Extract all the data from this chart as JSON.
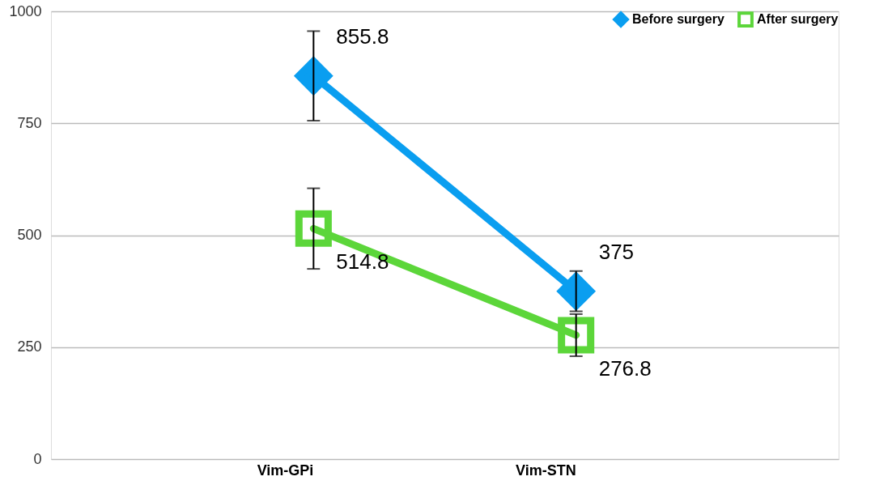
{
  "chart_data": {
    "type": "line",
    "categories": [
      "Vim-GPi",
      "Vim-STN"
    ],
    "series": [
      {
        "name": "Before surgery",
        "color": "#0a9ef0",
        "marker": "diamond",
        "values": [
          855.8,
          375
        ],
        "errors": [
          100,
          45
        ]
      },
      {
        "name": "After surgery",
        "color": "#5cd63a",
        "marker": "square",
        "values": [
          514.8,
          276.8
        ],
        "errors": [
          90,
          47
        ]
      }
    ],
    "ylim": [
      0,
      1000
    ],
    "yticks": [
      0,
      250,
      500,
      750,
      {
        "value": 1000,
        "label": "1000"
      }
    ],
    "grid": "y",
    "legend": "top right",
    "data_labels": true
  }
}
